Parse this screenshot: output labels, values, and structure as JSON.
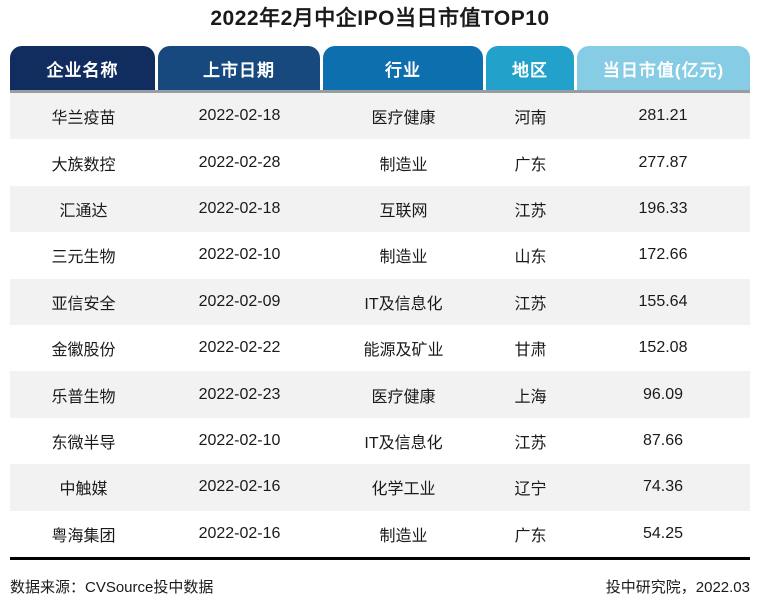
{
  "title": "2022年2月中企IPO当日市值TOP10",
  "colors": {
    "tab_company": "#112c5f",
    "tab_date": "#17497e",
    "tab_industry": "#0d6fae",
    "tab_region": "#22a1cb",
    "tab_value": "#85cce4",
    "row_stripe": "#f2f2f2",
    "header_underline": "#989ca3",
    "footer_divider": "#000000"
  },
  "table": {
    "headers": [
      "企业名称",
      "上市日期",
      "行业",
      "地区",
      "当日市值(亿元)"
    ],
    "rows": [
      {
        "company": "华兰疫苗",
        "date": "2022-02-18",
        "industry": "医疗健康",
        "region": "河南",
        "value": "281.21"
      },
      {
        "company": "大族数控",
        "date": "2022-02-28",
        "industry": "制造业",
        "region": "广东",
        "value": "277.87"
      },
      {
        "company": "汇通达",
        "date": "2022-02-18",
        "industry": "互联网",
        "region": "江苏",
        "value": "196.33"
      },
      {
        "company": "三元生物",
        "date": "2022-02-10",
        "industry": "制造业",
        "region": "山东",
        "value": "172.66"
      },
      {
        "company": "亚信安全",
        "date": "2022-02-09",
        "industry": "IT及信息化",
        "region": "江苏",
        "value": "155.64"
      },
      {
        "company": "金徽股份",
        "date": "2022-02-22",
        "industry": "能源及矿业",
        "region": "甘肃",
        "value": "152.08"
      },
      {
        "company": "乐普生物",
        "date": "2022-02-23",
        "industry": "医疗健康",
        "region": "上海",
        "value": "96.09"
      },
      {
        "company": "东微半导",
        "date": "2022-02-10",
        "industry": "IT及信息化",
        "region": "江苏",
        "value": "87.66"
      },
      {
        "company": "中触媒",
        "date": "2022-02-16",
        "industry": "化学工业",
        "region": "辽宁",
        "value": "74.36"
      },
      {
        "company": "粤海集团",
        "date": "2022-02-16",
        "industry": "制造业",
        "region": "广东",
        "value": "54.25"
      }
    ]
  },
  "footer": {
    "source": "数据来源：CVSource投中数据",
    "credit": "投中研究院，2022.03"
  },
  "chart_data": {
    "type": "table",
    "title": "2022年2月中企IPO当日市值TOP10",
    "columns": [
      "企业名称",
      "上市日期",
      "行业",
      "地区",
      "当日市值(亿元)"
    ],
    "rows": [
      [
        "华兰疫苗",
        "2022-02-18",
        "医疗健康",
        "河南",
        281.21
      ],
      [
        "大族数控",
        "2022-02-28",
        "制造业",
        "广东",
        277.87
      ],
      [
        "汇通达",
        "2022-02-18",
        "互联网",
        "江苏",
        196.33
      ],
      [
        "三元生物",
        "2022-02-10",
        "制造业",
        "山东",
        172.66
      ],
      [
        "亚信安全",
        "2022-02-09",
        "IT及信息化",
        "江苏",
        155.64
      ],
      [
        "金徽股份",
        "2022-02-22",
        "能源及矿业",
        "甘肃",
        152.08
      ],
      [
        "乐普生物",
        "2022-02-23",
        "医疗健康",
        "上海",
        96.09
      ],
      [
        "东微半导",
        "2022-02-10",
        "IT及信息化",
        "江苏",
        87.66
      ],
      [
        "中触媒",
        "2022-02-16",
        "化学工业",
        "辽宁",
        74.36
      ],
      [
        "粤海集团",
        "2022-02-16",
        "制造业",
        "广东",
        54.25
      ]
    ],
    "value_unit": "亿元",
    "sort": "当日市值 descending"
  }
}
